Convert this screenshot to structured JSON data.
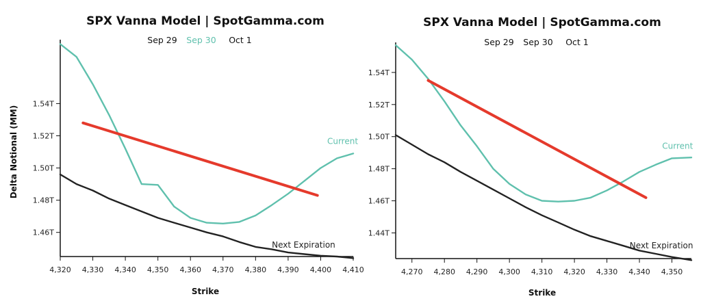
{
  "colors": {
    "current": "#5fc0ad",
    "next": "#222222",
    "trend": "#e53a2c",
    "axis": "#111111",
    "legend_default": "#111111"
  },
  "chart_data": [
    {
      "type": "line",
      "title": "SPX Vanna Model | SpotGamma.com",
      "legend": [
        {
          "label": "Sep 29",
          "color": "#111111"
        },
        {
          "label": "Sep 30",
          "color": "#5fc0ad"
        },
        {
          "label": "Oct 1",
          "color": "#111111"
        }
      ],
      "legend_placement": "top-center",
      "xlabel": "Strike",
      "ylabel": "Delta Notional (MM)",
      "xlim": [
        4320,
        4410
      ],
      "ylim": [
        1.445,
        1.578
      ],
      "x_ticks": [
        4320,
        4330,
        4340,
        4350,
        4360,
        4370,
        4380,
        4390,
        4400,
        4410
      ],
      "x_tick_labels": [
        "4,320",
        "4,330",
        "4,340",
        "4,350",
        "4,360",
        "4,370",
        "4,380",
        "4,390",
        "4,400",
        "4,410"
      ],
      "y_ticks": [
        1.46,
        1.48,
        1.5,
        1.52,
        1.54
      ],
      "y_tick_labels": [
        "1.46T",
        "1.48T",
        "1.50T",
        "1.52T",
        "1.54T"
      ],
      "grid": false,
      "series": [
        {
          "name": "Current",
          "color": "#5fc0ad",
          "label_at": [
            4402,
            1.515
          ],
          "x": [
            4320,
            4325,
            4330,
            4335,
            4340,
            4345,
            4350,
            4355,
            4360,
            4365,
            4370,
            4375,
            4380,
            4385,
            4390,
            4395,
            4400,
            4405,
            4410
          ],
          "y": [
            1.577,
            1.569,
            1.552,
            1.533,
            1.512,
            1.49,
            1.4895,
            1.476,
            1.469,
            1.466,
            1.4655,
            1.4665,
            1.4705,
            1.477,
            1.484,
            1.492,
            1.5,
            1.506,
            1.509
          ]
        },
        {
          "name": "Next Expiration",
          "color": "#222222",
          "label_at": [
            4385,
            1.4505
          ],
          "x": [
            4320,
            4325,
            4330,
            4335,
            4340,
            4345,
            4350,
            4355,
            4360,
            4365,
            4370,
            4375,
            4380,
            4385,
            4390,
            4395,
            4400,
            4405,
            4410
          ],
          "y": [
            1.496,
            1.49,
            1.486,
            1.481,
            1.477,
            1.473,
            1.469,
            1.466,
            1.463,
            1.46,
            1.4575,
            1.454,
            1.451,
            1.4495,
            1.4475,
            1.4465,
            1.4455,
            1.445,
            1.444
          ]
        },
        {
          "name": "Trend",
          "color": "#e53a2c",
          "width": 4,
          "x": [
            4327,
            4399
          ],
          "y": [
            1.528,
            1.483
          ]
        }
      ]
    },
    {
      "type": "line",
      "title": "SPX Vanna Model | SpotGamma.com",
      "legend": [
        {
          "label": "Sep 29",
          "color": "#111111"
        },
        {
          "label": "Sep 30",
          "color": "#111111"
        },
        {
          "label": "Oct 1",
          "color": "#111111"
        }
      ],
      "legend_placement": "top-center",
      "xlabel": "Strike",
      "ylabel": "",
      "xlim": [
        4265,
        4356
      ],
      "ylim": [
        1.424,
        1.557
      ],
      "x_ticks": [
        4270,
        4280,
        4290,
        4300,
        4310,
        4320,
        4330,
        4340,
        4350
      ],
      "x_tick_labels": [
        "4,270",
        "4,280",
        "4,290",
        "4,300",
        "4,310",
        "4,320",
        "4,330",
        "4,340",
        "4,350"
      ],
      "y_ticks": [
        1.44,
        1.46,
        1.48,
        1.5,
        1.52,
        1.54
      ],
      "y_tick_labels": [
        "1.44T",
        "1.46T",
        "1.48T",
        "1.50T",
        "1.52T",
        "1.54T"
      ],
      "grid": false,
      "series": [
        {
          "name": "Current",
          "color": "#5fc0ad",
          "label_at": [
            4347,
            1.4925
          ],
          "x": [
            4265,
            4270,
            4275,
            4280,
            4285,
            4290,
            4295,
            4300,
            4305,
            4310,
            4315,
            4320,
            4325,
            4330,
            4335,
            4340,
            4345,
            4350,
            4356
          ],
          "y": [
            1.557,
            1.548,
            1.536,
            1.522,
            1.507,
            1.494,
            1.48,
            1.4705,
            1.464,
            1.46,
            1.4595,
            1.46,
            1.462,
            1.4665,
            1.472,
            1.478,
            1.4825,
            1.4865,
            1.487
          ]
        },
        {
          "name": "Next Expiration",
          "color": "#222222",
          "label_at": [
            4337,
            1.4305
          ],
          "x": [
            4265,
            4270,
            4275,
            4280,
            4285,
            4290,
            4295,
            4300,
            4305,
            4310,
            4315,
            4320,
            4325,
            4330,
            4335,
            4340,
            4345,
            4350,
            4356
          ],
          "y": [
            1.501,
            1.495,
            1.489,
            1.484,
            1.478,
            1.4725,
            1.467,
            1.4615,
            1.456,
            1.451,
            1.4465,
            1.442,
            1.438,
            1.435,
            1.432,
            1.429,
            1.427,
            1.425,
            1.423
          ]
        },
        {
          "name": "Trend",
          "color": "#e53a2c",
          "width": 4,
          "x": [
            4275,
            4342
          ],
          "y": [
            1.535,
            1.462
          ]
        }
      ]
    }
  ]
}
